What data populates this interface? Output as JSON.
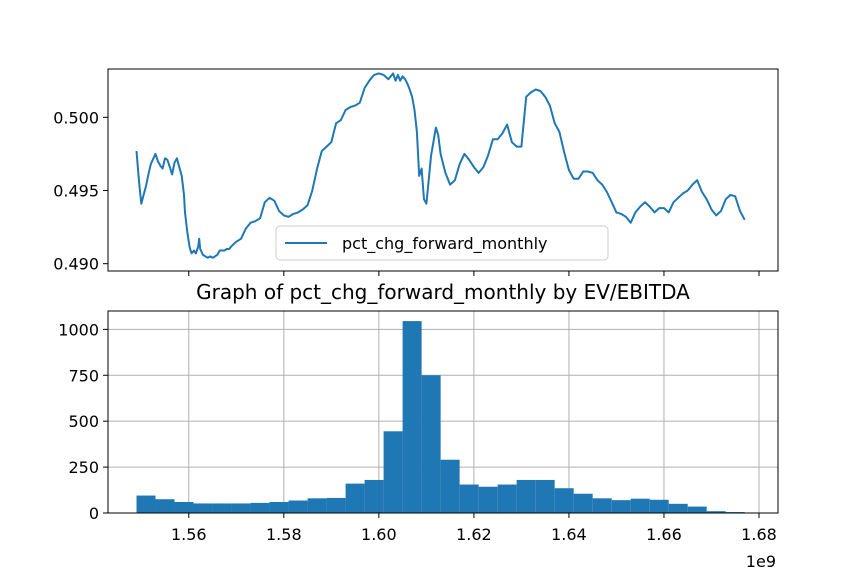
{
  "chart_data": [
    {
      "type": "line",
      "title": "",
      "xlabel": "",
      "ylabel": "",
      "ylim": [
        0.4895,
        0.5033
      ],
      "yticks": [
        "0.490",
        "0.495",
        "0.500"
      ],
      "ytick_values": [
        0.49,
        0.495,
        0.5
      ],
      "xlim": [
        1.543,
        1.684
      ],
      "grid": false,
      "legend": {
        "location": "lower center",
        "entries": [
          "pct_chg_forward_monthly"
        ]
      },
      "series": [
        {
          "name": "pct_chg_forward_monthly",
          "color": "#1f77b4",
          "x": [
            1.549,
            1.5495,
            1.55,
            1.5505,
            1.551,
            1.5515,
            1.552,
            1.553,
            1.5535,
            1.554,
            1.5545,
            1.555,
            1.5555,
            1.556,
            1.5565,
            1.557,
            1.5575,
            1.558,
            1.5585,
            1.559,
            1.5592,
            1.5597,
            1.5602,
            1.5606,
            1.5611,
            1.5615,
            1.562,
            1.5622,
            1.5624,
            1.563,
            1.5635,
            1.564,
            1.5645,
            1.5651,
            1.5655,
            1.566,
            1.5665,
            1.567,
            1.5675,
            1.568,
            1.5685,
            1.569,
            1.57,
            1.571,
            1.572,
            1.573,
            1.574,
            1.575,
            1.576,
            1.577,
            1.578,
            1.579,
            1.58,
            1.581,
            1.582,
            1.583,
            1.584,
            1.585,
            1.586,
            1.587,
            1.588,
            1.589,
            1.59,
            1.591,
            1.592,
            1.593,
            1.594,
            1.595,
            1.596,
            1.597,
            1.598,
            1.599,
            1.6,
            1.601,
            1.602,
            1.603,
            1.6035,
            1.604,
            1.6045,
            1.605,
            1.6055,
            1.606,
            1.6065,
            1.607,
            1.6075,
            1.608,
            1.6085,
            1.609,
            1.6095,
            1.61,
            1.611,
            1.612,
            1.6125,
            1.613,
            1.614,
            1.615,
            1.616,
            1.617,
            1.618,
            1.619,
            1.62,
            1.621,
            1.622,
            1.623,
            1.624,
            1.625,
            1.626,
            1.627,
            1.628,
            1.629,
            1.63,
            1.631,
            1.632,
            1.633,
            1.634,
            1.635,
            1.636,
            1.637,
            1.638,
            1.639,
            1.64,
            1.641,
            1.642,
            1.643,
            1.644,
            1.645,
            1.646,
            1.647,
            1.648,
            1.649,
            1.65,
            1.651,
            1.652,
            1.653,
            1.654,
            1.655,
            1.656,
            1.657,
            1.658,
            1.659,
            1.66,
            1.661,
            1.662,
            1.663,
            1.664,
            1.665,
            1.666,
            1.667,
            1.668,
            1.669,
            1.67,
            1.671,
            1.672,
            1.673,
            1.674,
            1.675,
            1.676,
            1.677
          ],
          "y": [
            0.4977,
            0.4957,
            0.4941,
            0.4947,
            0.4953,
            0.4961,
            0.4968,
            0.4975,
            0.497,
            0.4967,
            0.4965,
            0.4972,
            0.4971,
            0.4966,
            0.4961,
            0.4969,
            0.4972,
            0.4966,
            0.496,
            0.4947,
            0.4935,
            0.4921,
            0.4911,
            0.4907,
            0.4909,
            0.4907,
            0.4912,
            0.4917,
            0.491,
            0.4906,
            0.4905,
            0.4904,
            0.4905,
            0.4904,
            0.4905,
            0.4906,
            0.4909,
            0.4909,
            0.4909,
            0.491,
            0.491,
            0.4912,
            0.4915,
            0.4917,
            0.4924,
            0.4928,
            0.4929,
            0.4931,
            0.4942,
            0.4945,
            0.4943,
            0.4936,
            0.4933,
            0.4932,
            0.4934,
            0.4935,
            0.4937,
            0.494,
            0.495,
            0.4965,
            0.4977,
            0.498,
            0.4983,
            0.4996,
            0.4998,
            0.5005,
            0.5007,
            0.5008,
            0.501,
            0.502,
            0.5025,
            0.5029,
            0.503,
            0.5029,
            0.5026,
            0.503,
            0.5025,
            0.5029,
            0.5025,
            0.5028,
            0.5026,
            0.5023,
            0.5019,
            0.5014,
            0.5005,
            0.499,
            0.496,
            0.4965,
            0.4944,
            0.4941,
            0.4974,
            0.4993,
            0.4988,
            0.4975,
            0.4962,
            0.4954,
            0.4957,
            0.4968,
            0.4975,
            0.4971,
            0.4966,
            0.4962,
            0.4966,
            0.4974,
            0.4985,
            0.4985,
            0.4989,
            0.4995,
            0.4983,
            0.498,
            0.498,
            0.5014,
            0.5017,
            0.5019,
            0.5018,
            0.5014,
            0.5008,
            0.4996,
            0.499,
            0.4976,
            0.4964,
            0.4958,
            0.4958,
            0.4963,
            0.4963,
            0.4962,
            0.4957,
            0.4954,
            0.4949,
            0.4942,
            0.4935,
            0.4934,
            0.4932,
            0.4928,
            0.4935,
            0.4939,
            0.4942,
            0.4939,
            0.4935,
            0.4938,
            0.4938,
            0.4935,
            0.4942,
            0.4945,
            0.4948,
            0.495,
            0.4954,
            0.4957,
            0.4949,
            0.4944,
            0.4937,
            0.4933,
            0.4936,
            0.4944,
            0.4947,
            0.4946,
            0.4936,
            0.493
          ],
          "note_shape": "irregular noisy step-like path"
        }
      ]
    },
    {
      "type": "bar",
      "title": "Graph of pct_chg_forward_monthly by EV/EBITDA",
      "xlabel": "",
      "ylabel": "",
      "xlim": [
        1.543,
        1.684
      ],
      "ylim": [
        0,
        1100
      ],
      "x_offset_label": "1e9",
      "grid": true,
      "xticks": [
        "1.56",
        "1.58",
        "1.60",
        "1.62",
        "1.64",
        "1.66",
        "1.68"
      ],
      "xtick_values": [
        1.56,
        1.58,
        1.6,
        1.62,
        1.64,
        1.66,
        1.68
      ],
      "yticks": [
        "0",
        "250",
        "500",
        "750",
        "1000"
      ],
      "ytick_values": [
        0,
        250,
        500,
        750,
        1000
      ],
      "series": [
        {
          "name": "",
          "color": "#1f77b4",
          "bin_edges": [
            1.549,
            1.553,
            1.557,
            1.561,
            1.565,
            1.569,
            1.573,
            1.577,
            1.581,
            1.585,
            1.589,
            1.593,
            1.597,
            1.601,
            1.605,
            1.609,
            1.613,
            1.617,
            1.621,
            1.625,
            1.629,
            1.633,
            1.637,
            1.641,
            1.645,
            1.649,
            1.653,
            1.657,
            1.661,
            1.665,
            1.669,
            1.673,
            1.677
          ],
          "values": [
            95,
            75,
            60,
            52,
            52,
            52,
            55,
            60,
            68,
            80,
            82,
            160,
            180,
            445,
            1045,
            750,
            290,
            155,
            143,
            155,
            180,
            180,
            135,
            105,
            80,
            70,
            78,
            72,
            50,
            35,
            10,
            5
          ]
        }
      ]
    }
  ]
}
